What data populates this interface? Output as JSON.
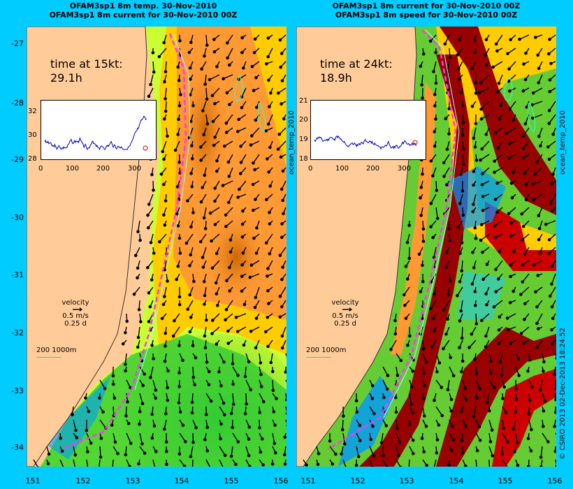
{
  "left": {
    "title1": "OFAM3sp1 8m temp. 30-Nov-2010",
    "title2": "OFAM3sp1 8m current for 30-Nov-2010 00Z",
    "time_label": "time at 15kt:",
    "time_value": "29.1h",
    "inset": {
      "y_ticks": [
        "32",
        "30",
        "28"
      ],
      "x_ticks": [
        "0",
        "100",
        "200",
        "300"
      ]
    },
    "side_label": "ocean_temp_2010"
  },
  "right": {
    "title1": "OFAM3sp1 8m current for 30-Nov-2010 00Z",
    "title2": "OFAM3sp1 8m speed for 30-Nov-2010 00Z",
    "time_label": "time at 24kt:",
    "time_value": "18.9h",
    "inset": {
      "y_ticks": [
        "21",
        "20",
        "19",
        "18"
      ],
      "x_ticks": [
        "0",
        "100",
        "200",
        "300"
      ]
    },
    "side_label": "ocean_temp_2010"
  },
  "velocity": {
    "label": "velocity",
    "speed": "0.5 m/s",
    "time": "0.25 d"
  },
  "depth_scale": "200  1000m",
  "y_ticks": [
    "-27",
    "-28",
    "-29",
    "-30",
    "-31",
    "-32",
    "-33",
    "-34"
  ],
  "x_ticks": [
    "151",
    "152",
    "153",
    "154",
    "155",
    "156"
  ],
  "credit": "© CSIRO 2013   02-Dec-2013 18:24:52",
  "colors": {
    "background": "#00ccff",
    "land": "#ffcc99",
    "track": "#ff33ff"
  }
}
